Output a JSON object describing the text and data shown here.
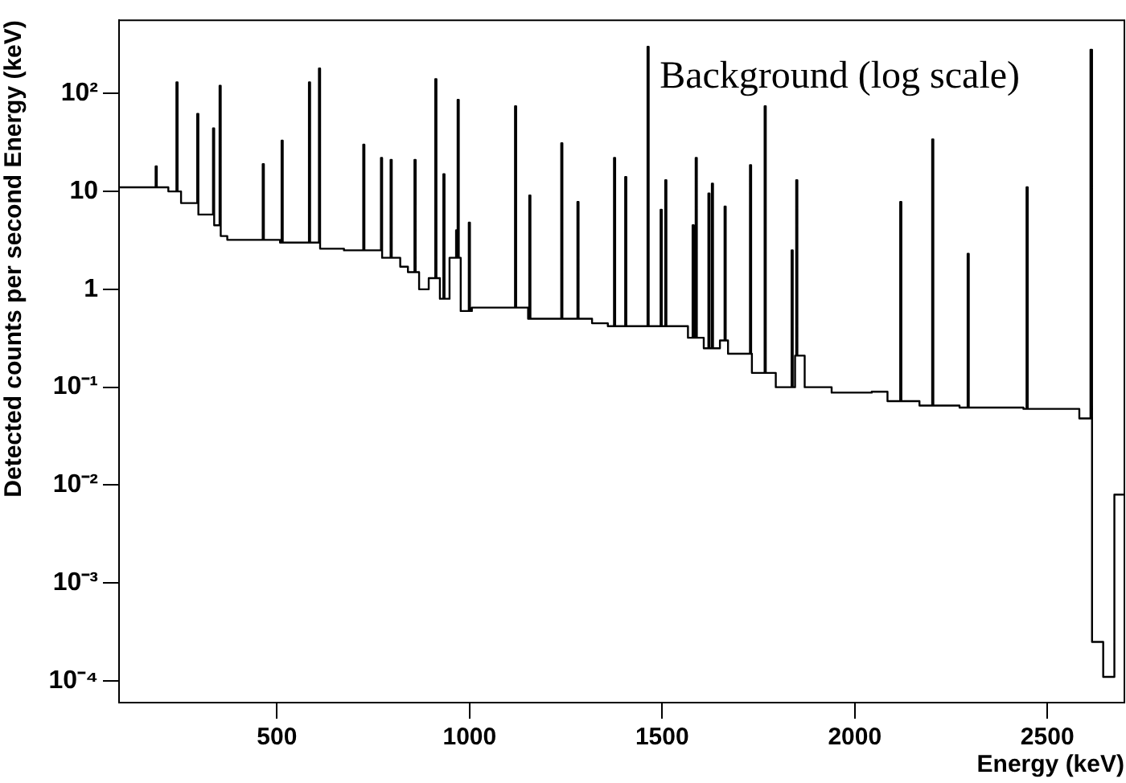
{
  "chart_data": {
    "type": "step",
    "xlabel": "Energy (keV)",
    "ylabel": "Detected counts per second Energy (keV)",
    "annotations": [
      "Background (log scale)"
    ],
    "log": "y",
    "grid": false,
    "legend": false,
    "xlim": [
      90,
      2700
    ],
    "xticks": [
      500,
      1000,
      1500,
      2000,
      2500
    ],
    "ylim": [
      6e-05,
      560
    ],
    "yticks": [
      {
        "value": 0.0001,
        "label": "10⁻⁴"
      },
      {
        "value": 0.001,
        "label": "10⁻³"
      },
      {
        "value": 0.01,
        "label": "10⁻²"
      },
      {
        "value": 0.1,
        "label": "10⁻¹"
      },
      1,
      10,
      {
        "value": 100,
        "label": "10²"
      }
    ],
    "series": [
      {
        "color": "#000000",
        "x": [
          90,
          185,
          188,
          218,
          239,
          242,
          251,
          293,
          296,
          334,
          337,
          351,
          354,
          371,
          463,
          466,
          508,
          512,
          515,
          583,
          586,
          609,
          612,
          674,
          724,
          727,
          770,
          773,
          795,
          798,
          820,
          840,
          857,
          860,
          869,
          894,
          911,
          914,
          923,
          932,
          935,
          948,
          965,
          967,
          969,
          972,
          977,
          998,
          1001,
          1006,
          1118,
          1121,
          1152,
          1155,
          1158,
          1238,
          1241,
          1280,
          1283,
          1318,
          1359,
          1375,
          1378,
          1404,
          1407,
          1462,
          1465,
          1496,
          1499,
          1508,
          1511,
          1567,
          1579,
          1582,
          1587,
          1590,
          1608,
          1620,
          1623,
          1629,
          1632,
          1650,
          1662,
          1665,
          1671,
          1728,
          1731,
          1733,
          1766,
          1769,
          1795,
          1836,
          1839,
          1845,
          1848,
          1851,
          1870,
          1940,
          2044,
          2085,
          2118,
          2121,
          2168,
          2201,
          2204,
          2272,
          2293,
          2296,
          2438,
          2446,
          2449,
          2583,
          2612,
          2616,
          2645,
          2674,
          2700
        ],
        "values": [
          11,
          18,
          11,
          10,
          130,
          10,
          7.6,
          62,
          5.8,
          44,
          4.5,
          120,
          3.5,
          3.2,
          19,
          3.2,
          3.0,
          33,
          3.0,
          130,
          3.0,
          180,
          2.6,
          2.5,
          30,
          2.5,
          22,
          2.1,
          21,
          2.1,
          1.7,
          1.5,
          21,
          1.5,
          1.0,
          1.3,
          140,
          1.3,
          0.8,
          15,
          0.8,
          2.1,
          4.0,
          2.1,
          86,
          2.1,
          0.6,
          4.8,
          0.6,
          0.65,
          74,
          0.65,
          0.5,
          9.1,
          0.5,
          31,
          0.5,
          7.8,
          0.5,
          0.45,
          0.42,
          22,
          0.42,
          14,
          0.42,
          300,
          0.42,
          6.5,
          0.42,
          13,
          0.42,
          0.32,
          4.5,
          0.32,
          22,
          0.32,
          0.25,
          9.5,
          0.25,
          12,
          0.25,
          0.3,
          7,
          0.3,
          0.22,
          18.5,
          0.22,
          0.14,
          74,
          0.14,
          0.1,
          2.5,
          0.1,
          0.21,
          13,
          0.21,
          0.1,
          0.088,
          0.09,
          0.072,
          7.8,
          0.072,
          0.065,
          34,
          0.065,
          0.062,
          2.3,
          0.062,
          0.06,
          11,
          0.06,
          0.048,
          280,
          0.00025,
          0.00011,
          0.008,
          0.008
        ]
      }
    ]
  }
}
